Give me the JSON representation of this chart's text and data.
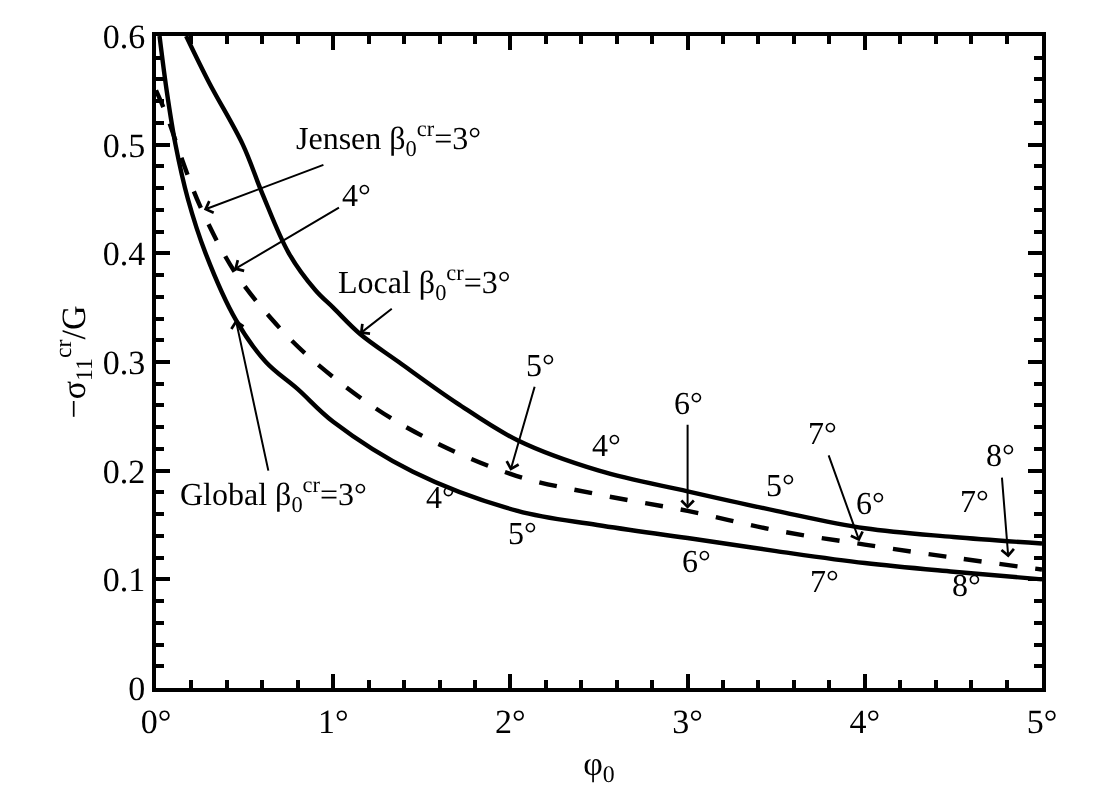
{
  "chart_data": {
    "type": "line",
    "xlabel": "φ$_{0}$",
    "ylabel": "−σ$_{11}$$^{cr}$/G",
    "xlim": [
      0,
      5
    ],
    "ylim": [
      0,
      0.6
    ],
    "xticks": [
      {
        "value": 0,
        "label": "0°"
      },
      {
        "value": 0.2,
        "label": null
      },
      {
        "value": 0.4,
        "label": null
      },
      {
        "value": 0.6,
        "label": null
      },
      {
        "value": 0.8,
        "label": null
      },
      {
        "value": 1,
        "label": "1°"
      },
      {
        "value": 1.2,
        "label": null
      },
      {
        "value": 1.4,
        "label": null
      },
      {
        "value": 1.6,
        "label": null
      },
      {
        "value": 1.8,
        "label": null
      },
      {
        "value": 2,
        "label": "2°"
      },
      {
        "value": 2.2,
        "label": null
      },
      {
        "value": 2.4,
        "label": null
      },
      {
        "value": 2.6,
        "label": null
      },
      {
        "value": 2.8,
        "label": null
      },
      {
        "value": 3,
        "label": "3°"
      },
      {
        "value": 3.2,
        "label": null
      },
      {
        "value": 3.4,
        "label": null
      },
      {
        "value": 3.6,
        "label": null
      },
      {
        "value": 3.8,
        "label": null
      },
      {
        "value": 4,
        "label": "4°"
      },
      {
        "value": 4.2,
        "label": null
      },
      {
        "value": 4.4,
        "label": null
      },
      {
        "value": 4.6,
        "label": null
      },
      {
        "value": 4.8,
        "label": null
      },
      {
        "value": 5,
        "label": "5°"
      }
    ],
    "yticks": [
      0,
      {
        "value": 0.02,
        "label": null
      },
      {
        "value": 0.04,
        "label": null
      },
      {
        "value": 0.06,
        "label": null
      },
      {
        "value": 0.08,
        "label": null
      },
      0.1,
      {
        "value": 0.12,
        "label": null
      },
      {
        "value": 0.14,
        "label": null
      },
      {
        "value": 0.16,
        "label": null
      },
      {
        "value": 0.18,
        "label": null
      },
      0.2,
      {
        "value": 0.22,
        "label": null
      },
      {
        "value": 0.24,
        "label": null
      },
      {
        "value": 0.26,
        "label": null
      },
      {
        "value": 0.28,
        "label": null
      },
      0.3,
      {
        "value": 0.32,
        "label": null
      },
      {
        "value": 0.34,
        "label": null
      },
      {
        "value": 0.36,
        "label": null
      },
      {
        "value": 0.38,
        "label": null
      },
      0.4,
      {
        "value": 0.42,
        "label": null
      },
      {
        "value": 0.44,
        "label": null
      },
      {
        "value": 0.46,
        "label": null
      },
      {
        "value": 0.48,
        "label": null
      },
      0.5,
      {
        "value": 0.52,
        "label": null
      },
      {
        "value": 0.54,
        "label": null
      },
      {
        "value": 0.56,
        "label": null
      },
      {
        "value": 0.58,
        "label": null
      },
      0.6
    ],
    "marker": "none",
    "series": [
      {
        "color": "#000000",
        "line_style": "solid",
        "x": [
          0.17,
          0.3,
          0.49,
          0.6,
          0.75,
          0.9,
          1.0,
          1.15,
          1.37,
          1.7,
          2.04,
          2.5,
          3.0,
          3.5,
          4.0,
          4.5,
          5.0
        ],
        "values": [
          0.6,
          0.557,
          0.5,
          0.455,
          0.4,
          0.366,
          0.35,
          0.326,
          0.3,
          0.262,
          0.228,
          0.2,
          0.181,
          0.163,
          0.147,
          0.139,
          0.133
        ]
      },
      {
        "color": "#000000",
        "line_style": "dashed",
        "x": [
          0.0,
          0.06,
          0.15,
          0.25,
          0.44,
          0.65,
          0.89,
          1.37,
          2.0,
          2.5,
          3.0,
          3.5,
          4.0,
          4.5,
          5.0
        ],
        "values": [
          0.55,
          0.527,
          0.485,
          0.443,
          0.384,
          0.34,
          0.301,
          0.244,
          0.197,
          0.178,
          0.163,
          0.145,
          0.132,
          0.12,
          0.109
        ]
      },
      {
        "color": "#000000",
        "line_style": "solid",
        "x": [
          0.02,
          0.06,
          0.11,
          0.18,
          0.28,
          0.45,
          0.62,
          0.8,
          1.0,
          1.45,
          2.04,
          2.49,
          3.0,
          3.5,
          4.0,
          4.5,
          5.0
        ],
        "values": [
          0.6,
          0.55,
          0.5,
          0.45,
          0.4,
          0.339,
          0.3,
          0.275,
          0.245,
          0.199,
          0.163,
          0.15,
          0.138,
          0.126,
          0.115,
          0.107,
          0.1
        ]
      }
    ],
    "annotations": [
      {
        "text": "Jensen β$_{0}$$^{cr}$=3°",
        "x": 0.27,
        "y": 0.44
      },
      {
        "text": "4°",
        "x": 0.44,
        "y": 0.385
      },
      {
        "text": "Local β$_{0}$$^{cr}$=3°",
        "x": 1.15,
        "y": 0.326
      },
      {
        "text": "Global β$_{0}$$^{cr}$=3°",
        "x": 0.45,
        "y": 0.339
      },
      {
        "text": "5°",
        "x": 2.0,
        "y": 0.2
      },
      {
        "text": "6°",
        "x": 3.0,
        "y": 0.165
      },
      {
        "text": "7°",
        "x": 3.97,
        "y": 0.135
      },
      {
        "text": "8°",
        "x": 4.81,
        "y": 0.12
      },
      {
        "text": "4°",
        "x": 2.5,
        "y": 0.2
      },
      {
        "text": "5°",
        "x": 3.5,
        "y": 0.163
      },
      {
        "text": "6°",
        "x": 4.0,
        "y": 0.147
      },
      {
        "text": "7°",
        "x": 4.5,
        "y": 0.139
      },
      {
        "text": "4°",
        "x": 1.45,
        "y": 0.199
      },
      {
        "text": "5°",
        "x": 2.04,
        "y": 0.163
      },
      {
        "text": "6°",
        "x": 3.0,
        "y": 0.138
      },
      {
        "text": "7°",
        "x": 4.0,
        "y": 0.115
      },
      {
        "text": "8°",
        "x": 4.5,
        "y": 0.107
      }
    ]
  }
}
